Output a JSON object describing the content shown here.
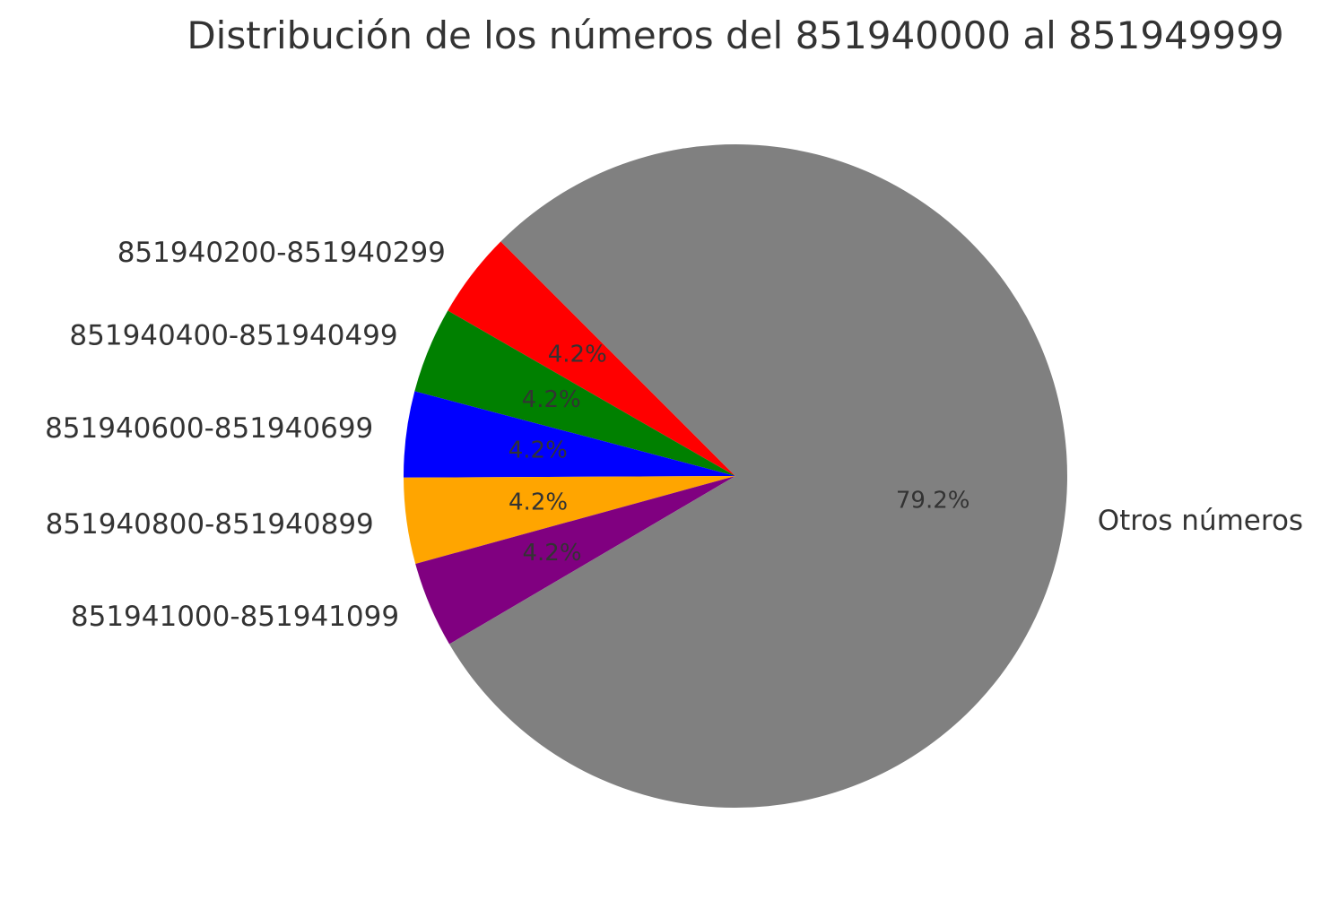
{
  "chart_data": {
    "type": "pie",
    "title": "Distribución de los números del 851940000 al 851949999",
    "start_angle_deg": 135,
    "direction": "counterclockwise",
    "slices": [
      {
        "label": "851940200-851940299",
        "value": 4.2,
        "pct_label": "4.2%",
        "color": "#ff0000"
      },
      {
        "label": "851940400-851940499",
        "value": 4.2,
        "pct_label": "4.2%",
        "color": "#008000"
      },
      {
        "label": "851940600-851940699",
        "value": 4.2,
        "pct_label": "4.2%",
        "color": "#0000ff"
      },
      {
        "label": "851940800-851940899",
        "value": 4.2,
        "pct_label": "4.2%",
        "color": "#ffa500"
      },
      {
        "label": "851941000-851941099",
        "value": 4.2,
        "pct_label": "4.2%",
        "color": "#800080"
      },
      {
        "label": "Otros números",
        "value": 79.2,
        "pct_label": "79.2%",
        "color": "#808080"
      }
    ]
  }
}
